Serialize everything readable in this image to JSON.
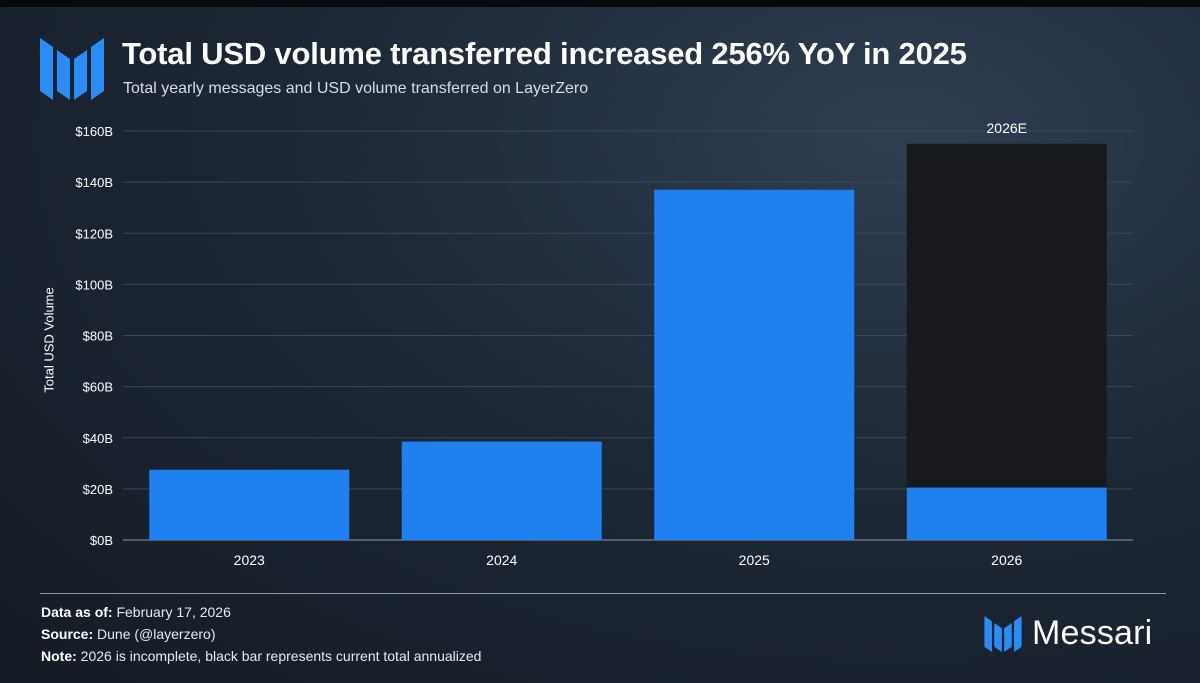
{
  "header": {
    "title": "Total USD volume transferred increased 256% YoY in 2025",
    "subtitle": "Total yearly messages and USD volume transferred on LayerZero"
  },
  "chart_data": {
    "type": "bar",
    "title": "Total USD volume transferred increased 256% YoY in 2025",
    "subtitle": "Total yearly messages and USD volume transferred on LayerZero",
    "xlabel": "",
    "ylabel": "Total USD Volume",
    "ylim": [
      0,
      160
    ],
    "y_unit": "B",
    "y_ticks": [
      "$0B",
      "$20B",
      "$40B",
      "$60B",
      "$80B",
      "$100B",
      "$120B",
      "$140B",
      "$160B"
    ],
    "y_tick_values": [
      0,
      20,
      40,
      60,
      80,
      100,
      120,
      140,
      160
    ],
    "grid": true,
    "categories": [
      "2023",
      "2024",
      "2025",
      "2026"
    ],
    "series": [
      {
        "name": "Total USD volume",
        "color": "#1f80f0",
        "values": [
          27.5,
          38.5,
          137,
          20.5
        ]
      },
      {
        "name": "2026 annualized (estimate)",
        "color": "#17191c",
        "values": [
          null,
          null,
          null,
          155
        ]
      }
    ],
    "annotations": [
      {
        "category": "2026",
        "text": "2026E"
      }
    ]
  },
  "footer": {
    "data_as_of_label": "Data as of:",
    "data_as_of_value": "February 17, 2026",
    "source_label": "Source:",
    "source_value": "Dune (@layerzero)",
    "note_label": "Note:",
    "note_value": "2026 is incomplete, black bar represents current total annualized"
  },
  "brand": {
    "name": "Messari",
    "logo_color": "#2a8cf5"
  }
}
